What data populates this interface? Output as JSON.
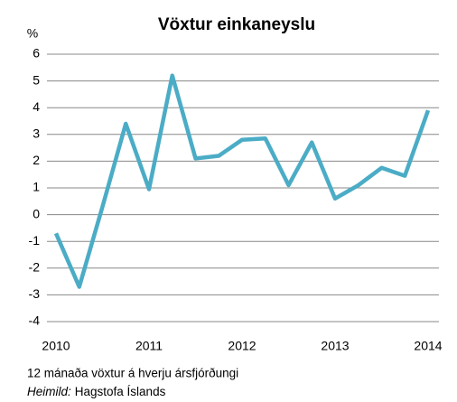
{
  "chart_data": {
    "type": "line",
    "title": "Vöxtur einkaneyslu",
    "ylabel": "%",
    "categories": [
      "2010",
      null,
      null,
      null,
      "2011",
      null,
      null,
      null,
      "2012",
      null,
      null,
      null,
      "2013",
      null,
      null,
      null,
      "2014"
    ],
    "series": [
      {
        "name": "Vöxtur einkaneyslu",
        "color": "#4bacc6",
        "values": [
          -0.7,
          -2.7,
          0.3,
          3.4,
          0.95,
          5.2,
          2.1,
          2.2,
          2.8,
          2.85,
          1.1,
          2.7,
          0.6,
          1.1,
          1.75,
          1.45,
          3.9
        ]
      }
    ],
    "ylim": [
      -4,
      6
    ],
    "yticks": [
      -4,
      -3,
      -2,
      -1,
      0,
      1,
      2,
      3,
      4,
      5,
      6
    ],
    "grid": true,
    "note": "12 mánaða vöxtur á hverju ársfjórðungi",
    "source_label": "Heimild:",
    "source": "Hagstofa Íslands"
  }
}
